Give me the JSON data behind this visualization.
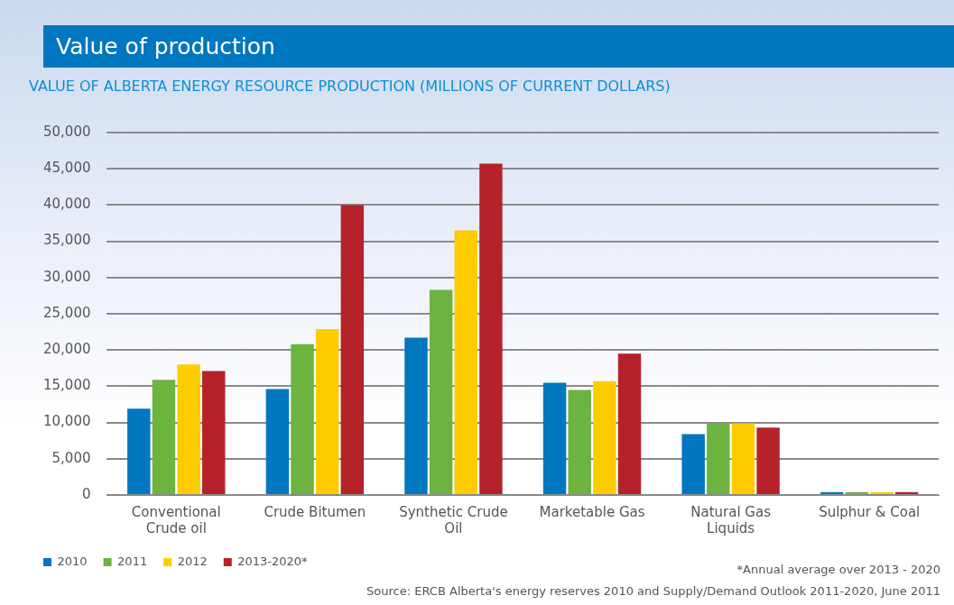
{
  "chart_data": {
    "type": "bar",
    "title": "Value of production",
    "subtitle": "VALUE OF ALBERTA ENERGY RESOURCE PRODUCTION (MILLIONS OF CURRENT DOLLARS)",
    "categories": [
      "Conventional Crude oil",
      "Crude Bitumen",
      "Synthetic Crude Oil",
      "Marketable Gas",
      "Natural Gas Liquids",
      "Sulphur & Coal"
    ],
    "series": [
      {
        "name": "2010",
        "color": "#0077bf",
        "values": [
          11900,
          14600,
          21700,
          15500,
          8400,
          400
        ]
      },
      {
        "name": "2011",
        "color": "#6db33f",
        "values": [
          15900,
          20800,
          28300,
          14500,
          9900,
          400
        ]
      },
      {
        "name": "2012",
        "color": "#ffcc00",
        "values": [
          18000,
          22900,
          36500,
          15700,
          9900,
          400
        ]
      },
      {
        "name": "2013-2020*",
        "color": "#b5222a",
        "values": [
          17100,
          40000,
          45700,
          19500,
          9300,
          400
        ]
      }
    ],
    "ylim": [
      0,
      50000
    ],
    "yticks": [
      0,
      {
        "value": 5000,
        "label": "5,000"
      },
      {
        "value": 10000,
        "label": "10,000"
      },
      {
        "value": 15000,
        "label": "15,000"
      },
      {
        "value": 20000,
        "label": "20,000"
      },
      {
        "value": 25000,
        "label": "25,000"
      },
      {
        "value": 30000,
        "label": "30,000"
      },
      {
        "value": 35000,
        "label": "35,000"
      },
      {
        "value": 40000,
        "label": "40,000"
      },
      {
        "value": 45000,
        "label": "45,000"
      },
      {
        "value": 50000,
        "label": "50,000"
      }
    ],
    "grid": "y",
    "legend": "bottom left",
    "annotations": [
      "*Annual average over 2013 - 2020",
      "Source: ERCB Alberta's energy reserves 2010 and Supply/Demand Outlook 2011-2020, June 2011"
    ]
  }
}
